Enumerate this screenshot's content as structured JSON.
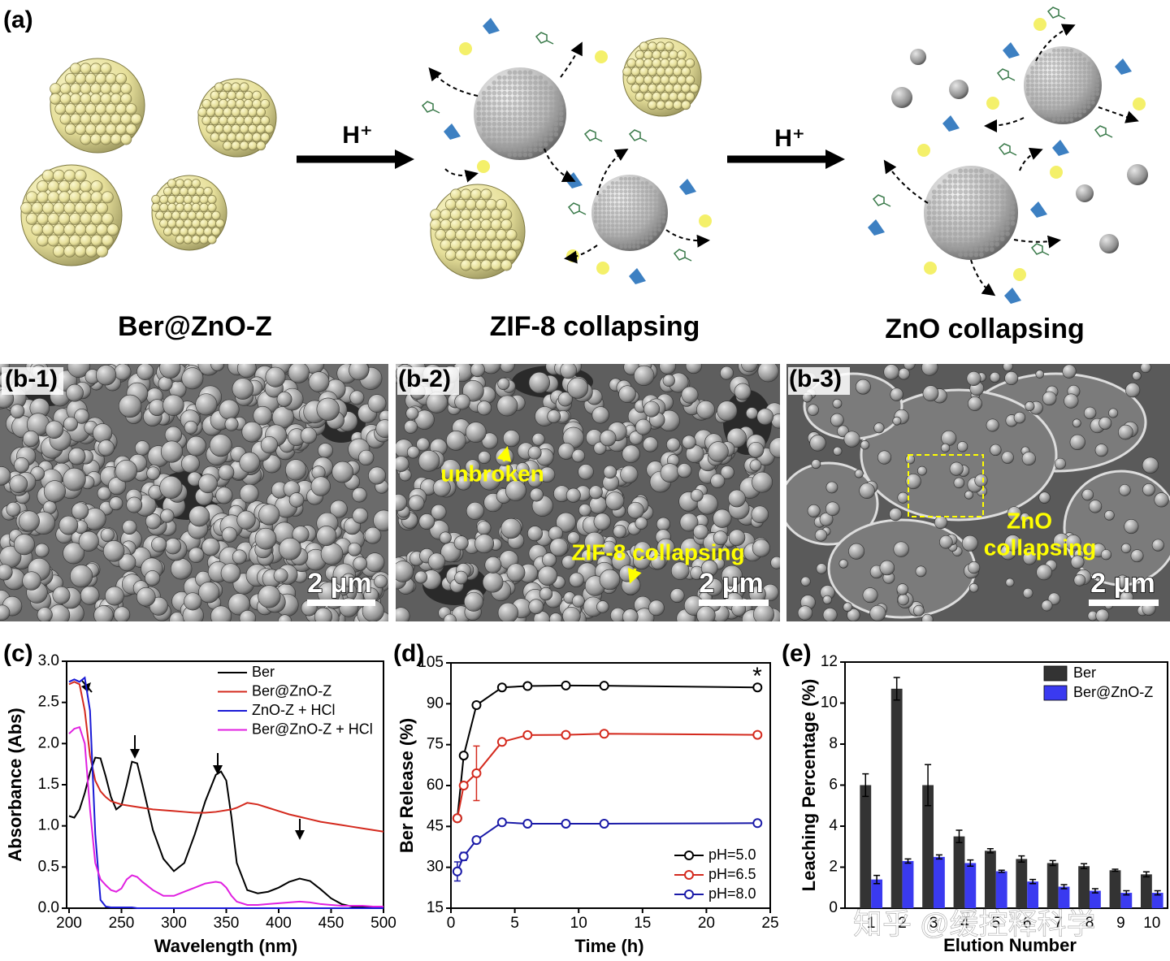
{
  "panel_a": {
    "tag": "(a)",
    "arrow_label_1": "H⁺",
    "arrow_label_2": "H⁺",
    "stage_1": "Ber@ZnO-Z",
    "stage_2": "ZIF-8 collapsing",
    "stage_3": "ZnO collapsing"
  },
  "panel_b": [
    {
      "tag": "(b-1)",
      "scale": "2 μm"
    },
    {
      "tag": "(b-2)",
      "scale": "2 μm",
      "note_1": "unbroken",
      "note_2": "ZIF-8 collapsing"
    },
    {
      "tag": "(b-3)",
      "scale": "2 μm",
      "note_1": "ZnO",
      "note_2": "collapsing"
    }
  ],
  "watermark": "知乎 @缓控释科学",
  "chart_data": [
    {
      "type": "line",
      "panel": "(c)",
      "xlabel": "Wavelength (nm)",
      "ylabel": "Absorbance (Abs)",
      "legend": "upper right",
      "x": [
        200,
        205,
        210,
        215,
        220,
        225,
        230,
        235,
        240,
        245,
        250,
        255,
        260,
        265,
        270,
        280,
        290,
        300,
        310,
        320,
        330,
        340,
        345,
        350,
        355,
        360,
        370,
        380,
        390,
        400,
        410,
        420,
        430,
        440,
        450,
        460,
        470,
        480,
        490,
        500
      ],
      "xlim": [
        200,
        500
      ],
      "xticks": [
        200,
        250,
        300,
        350,
        400,
        450,
        500
      ],
      "ylim": [
        0,
        3
      ],
      "yticks": [
        {
          "value": 0,
          "label": "0.0"
        },
        0.5,
        {
          "value": 1,
          "label": "1.0"
        },
        1.5,
        {
          "value": 2,
          "label": "2.0"
        },
        2.5,
        {
          "value": 3,
          "label": "3.0"
        }
      ],
      "series": [
        {
          "name": "Ber",
          "color": "#000000",
          "values": [
            1.12,
            1.1,
            1.2,
            1.4,
            1.65,
            1.83,
            1.82,
            1.6,
            1.35,
            1.2,
            1.25,
            1.5,
            1.78,
            1.76,
            1.5,
            0.95,
            0.6,
            0.45,
            0.55,
            0.9,
            1.3,
            1.62,
            1.66,
            1.55,
            1.1,
            0.55,
            0.22,
            0.18,
            0.2,
            0.25,
            0.32,
            0.36,
            0.33,
            0.23,
            0.12,
            0.05,
            0.02,
            0.01,
            0.01,
            0.01
          ]
        },
        {
          "name": "Ber@ZnO-Z",
          "color": "#d42a1e",
          "values": [
            2.72,
            2.75,
            2.72,
            2.4,
            1.85,
            1.55,
            1.42,
            1.35,
            1.3,
            1.28,
            1.26,
            1.25,
            1.24,
            1.23,
            1.22,
            1.2,
            1.19,
            1.18,
            1.17,
            1.16,
            1.16,
            1.17,
            1.18,
            1.19,
            1.2,
            1.22,
            1.28,
            1.26,
            1.22,
            1.18,
            1.14,
            1.11,
            1.08,
            1.05,
            1.03,
            1.01,
            0.99,
            0.97,
            0.95,
            0.93
          ]
        },
        {
          "name": "ZnO-Z + HCl",
          "color": "#1a1ad6",
          "values": [
            2.75,
            2.78,
            2.75,
            2.8,
            2.4,
            0.9,
            0.1,
            0.02,
            0.01,
            0.01,
            0.01,
            0.01,
            0.01,
            0,
            0,
            0,
            0,
            0,
            0,
            0,
            0,
            0,
            0,
            0,
            0,
            0,
            0,
            0,
            0,
            0,
            0,
            0,
            0,
            0,
            0,
            0,
            0,
            0,
            0,
            0
          ]
        },
        {
          "name": "Ber@ZnO-Z + HCl",
          "color": "#e020e0",
          "values": [
            2.12,
            2.18,
            2.2,
            2.0,
            1.2,
            0.55,
            0.35,
            0.28,
            0.22,
            0.2,
            0.24,
            0.35,
            0.4,
            0.38,
            0.32,
            0.22,
            0.15,
            0.15,
            0.2,
            0.25,
            0.3,
            0.32,
            0.31,
            0.25,
            0.15,
            0.08,
            0.04,
            0.04,
            0.05,
            0.06,
            0.07,
            0.08,
            0.07,
            0.05,
            0.04,
            0.03,
            0.03,
            0.03,
            0.02,
            0.02
          ]
        }
      ]
    },
    {
      "type": "line",
      "markers": true,
      "panel": "(d)",
      "xlabel": "Time (h)",
      "ylabel": "Ber Release (%)",
      "legend": "lower right",
      "annotation": "*",
      "x": [
        0.5,
        1,
        2,
        4,
        6,
        9,
        12,
        24
      ],
      "xlim": [
        0,
        25
      ],
      "xticks": [
        0,
        5,
        10,
        15,
        20,
        25
      ],
      "ylim": [
        15,
        105
      ],
      "yticks": [
        15,
        30,
        45,
        60,
        75,
        90,
        105
      ],
      "series": [
        {
          "name": "pH=5.0",
          "color": "#000000",
          "values": [
            48,
            71,
            89.5,
            96,
            96.5,
            96.7,
            96.6,
            96
          ],
          "errors": [
            0.5,
            0.5,
            0.5,
            0.5,
            0.5,
            0.5,
            0.5,
            0.5
          ]
        },
        {
          "name": "pH=6.5",
          "color": "#d42a1e",
          "values": [
            48,
            60,
            64.5,
            76,
            78.5,
            78.6,
            79,
            78.6
          ],
          "errors": [
            1,
            1,
            10,
            0.5,
            0.5,
            0.5,
            1.2,
            0.5
          ]
        },
        {
          "name": "pH=8.0",
          "color": "#1a1aa8",
          "values": [
            28.5,
            34,
            40,
            46.5,
            46,
            46,
            46,
            46.2
          ],
          "errors": [
            3.5,
            1.5,
            0.5,
            0.5,
            0.5,
            0.5,
            0.5,
            0.5
          ]
        }
      ]
    },
    {
      "type": "bar",
      "panel": "(e)",
      "xlabel": "Elution Number",
      "ylabel": "Leaching Percentage (%)",
      "legend": "upper right",
      "categories": [
        "1",
        "2",
        "3",
        "4",
        "5",
        "6",
        "7",
        "8",
        "9",
        "10"
      ],
      "ylim": [
        0,
        12
      ],
      "yticks": [
        0,
        2,
        4,
        6,
        8,
        10,
        12
      ],
      "series": [
        {
          "name": "Ber",
          "color": "#333333",
          "values": [
            6,
            10.7,
            6,
            3.5,
            2.8,
            2.4,
            2.2,
            2.05,
            1.85,
            1.65
          ],
          "errors": [
            0.55,
            0.55,
            1.0,
            0.3,
            0.1,
            0.15,
            0.12,
            0.12,
            0.05,
            0.12
          ]
        },
        {
          "name": "Ber@ZnO-Z",
          "color": "#3a3af0",
          "values": [
            1.4,
            2.3,
            2.5,
            2.2,
            1.8,
            1.3,
            1.05,
            0.85,
            0.75,
            0.75
          ],
          "errors": [
            0.2,
            0.1,
            0.1,
            0.15,
            0.05,
            0.1,
            0.1,
            0.1,
            0.1,
            0.1
          ]
        }
      ]
    }
  ]
}
